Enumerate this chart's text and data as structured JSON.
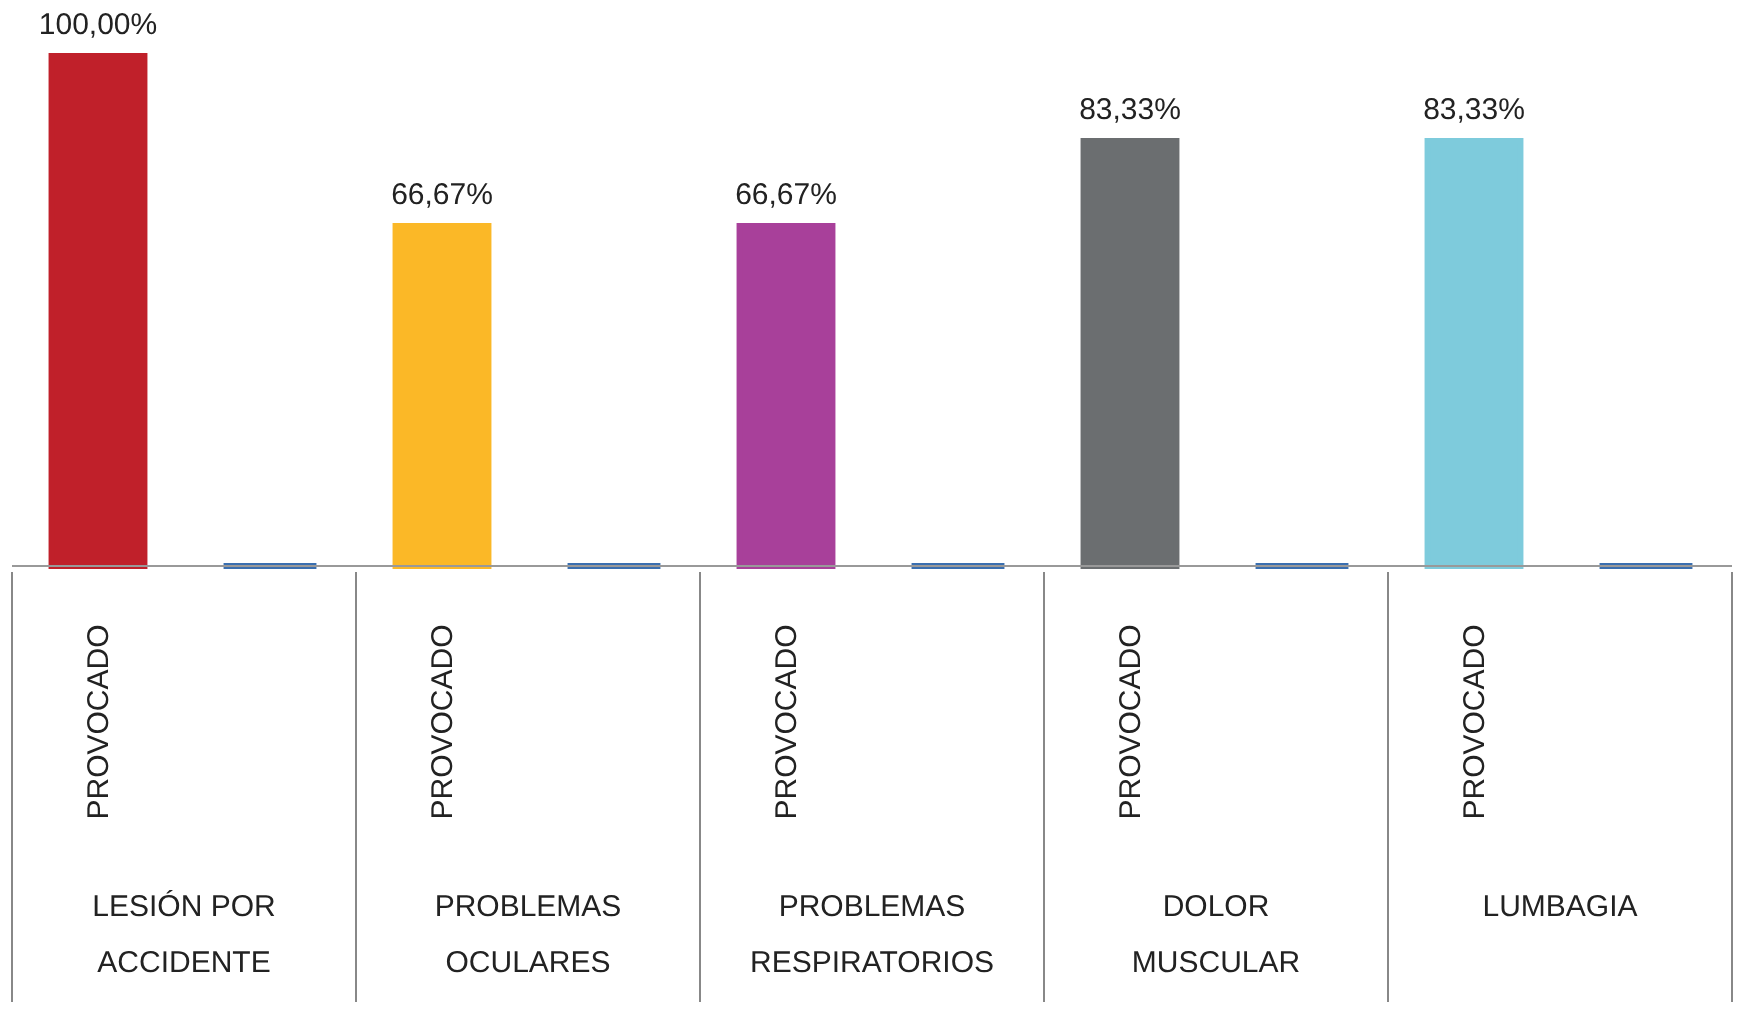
{
  "chart_data": {
    "type": "bar",
    "categories": [
      "PROVOCADO",
      null,
      "PROVOCADO",
      null,
      "PROVOCADO",
      null,
      "PROVOCADO",
      null,
      "PROVOCADO",
      null
    ],
    "values": [
      100,
      0,
      66.67,
      0,
      66.67,
      0,
      83.33,
      0,
      83.33,
      0
    ],
    "colors": [
      "#c0202a",
      "#3a6fb0",
      "#fbb827",
      "#3a6fb0",
      "#a8409a",
      "#3a6fb0",
      "#6b6e70",
      "#3a6fb0",
      "#7ecbdc",
      "#3a6fb0"
    ],
    "value_labels": [
      "100,00%",
      null,
      "66,67%",
      null,
      "66,67%",
      null,
      "83,33%",
      null,
      "83,33%",
      null
    ],
    "annotations": [
      "LESIÓN POR ACCIDENTE",
      "PROBLEMAS OCULARES",
      "PROBLEMAS RESPIRATORIOS",
      "DOLOR MUSCULAR",
      "LUMBAGIA"
    ]
  }
}
